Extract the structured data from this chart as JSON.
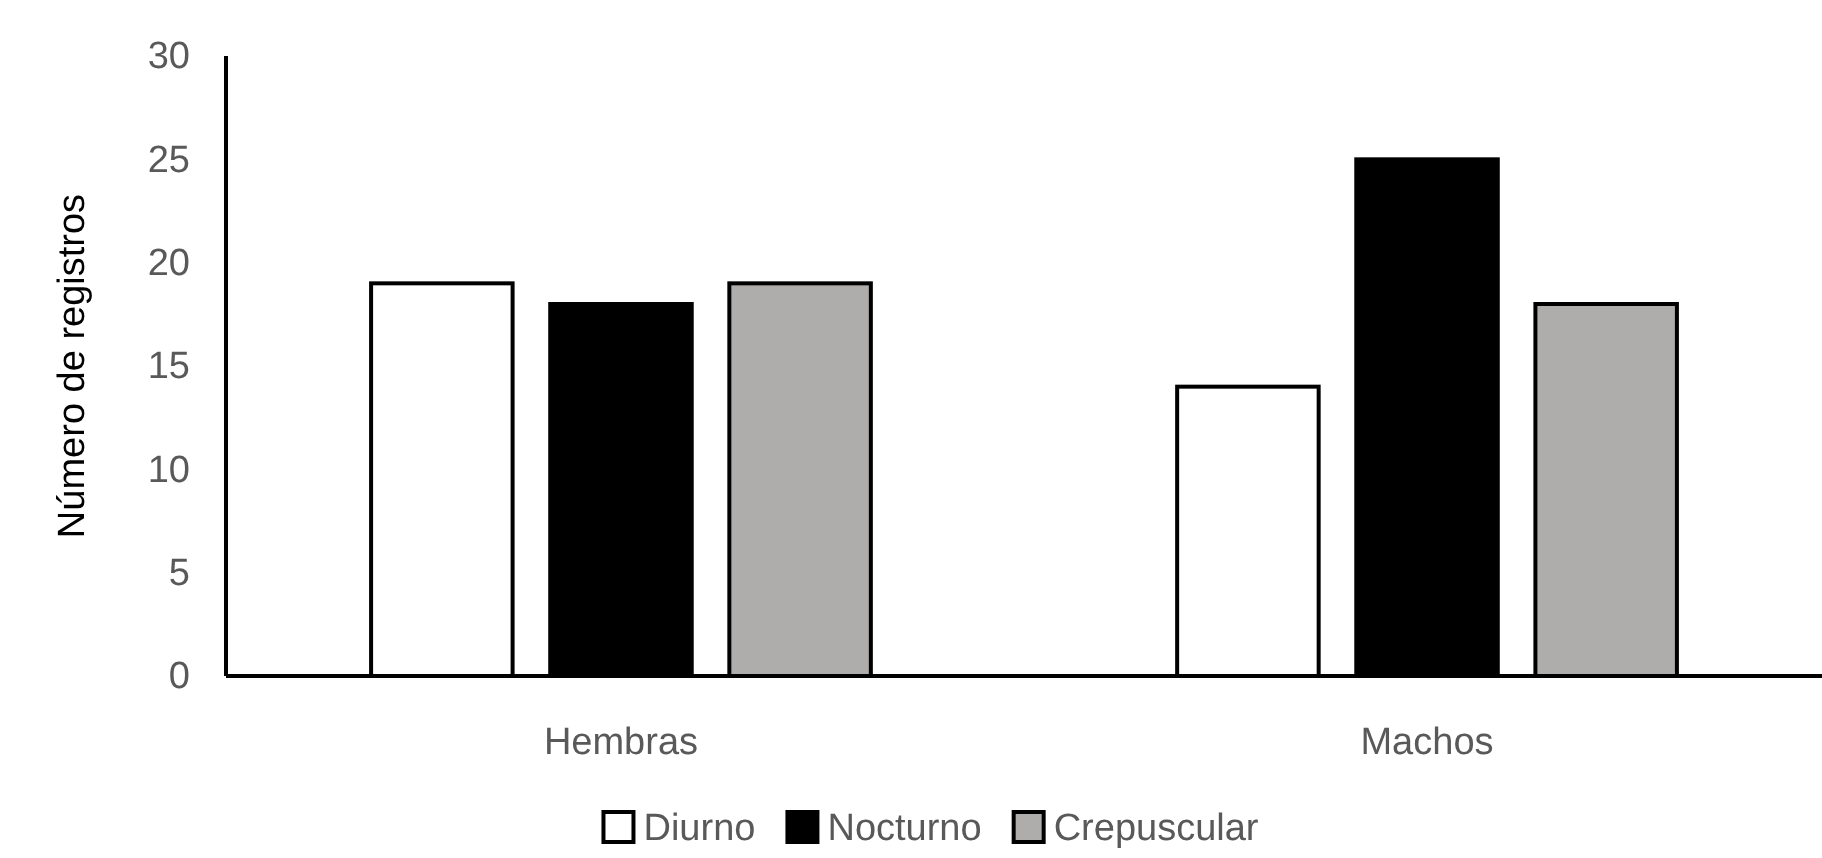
{
  "chart_data": {
    "type": "bar",
    "ylabel": "Número de registros",
    "categories": [
      "Hembras",
      "Machos"
    ],
    "series": [
      {
        "name": "Diurno",
        "color": "#ffffff",
        "values": [
          19,
          14
        ]
      },
      {
        "name": "Nocturno",
        "color": "#000000",
        "values": [
          18,
          25
        ]
      },
      {
        "name": "Crepuscular",
        "color": "#aeadab",
        "values": [
          19,
          18
        ]
      }
    ],
    "ylim": [
      0,
      30
    ],
    "yticks": [
      0,
      5,
      10,
      15,
      20,
      25,
      30
    ],
    "grid": false,
    "legend": "bottom"
  }
}
